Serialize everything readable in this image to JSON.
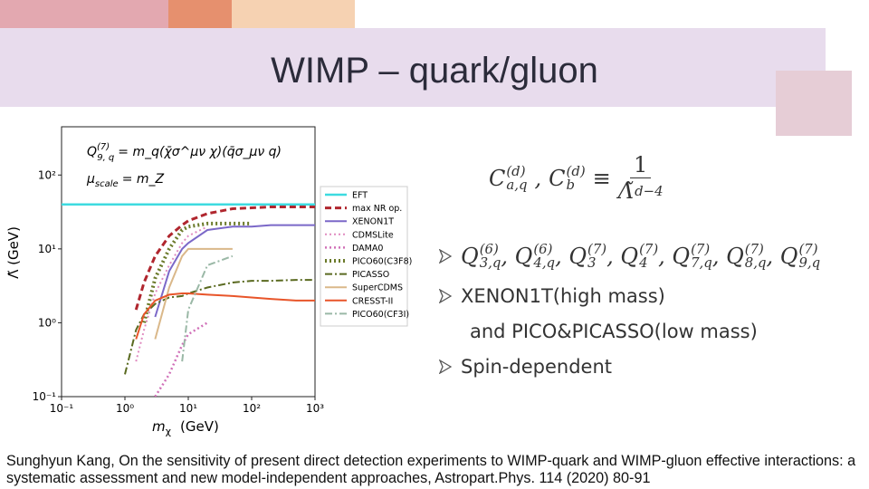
{
  "title": "WIMP – quark/gluon",
  "chart_data": {
    "type": "line",
    "x_label": {
      "base": "m",
      "sub": "χ",
      "unit": "(GeV)"
    },
    "y_label": "Λ̃  (GeV)",
    "log_x": true,
    "log_y": true,
    "xlim": [
      0.1,
      1000
    ],
    "ylim": [
      0.1,
      450
    ],
    "xticks": [
      {
        "value": 0.1,
        "label": "10⁻¹"
      },
      {
        "value": 1,
        "label": "10⁰"
      },
      {
        "value": 10,
        "label": "10¹"
      },
      {
        "value": 100,
        "label": "10²"
      },
      {
        "value": 1000,
        "label": "10³"
      }
    ],
    "yticks": [
      {
        "value": 0.1,
        "label": "10⁻¹"
      },
      {
        "value": 1,
        "label": "10⁰"
      },
      {
        "value": 10,
        "label": "10¹"
      },
      {
        "value": 100,
        "label": "10²"
      }
    ],
    "annotations": [
      {
        "base": "Q",
        "sup": "(7)",
        "sub": "9, q",
        "rhs": "= m_q(χ̄σ^μν χ)(q̄σ_μν q)"
      },
      {
        "base": "μ",
        "sub": "scale",
        "rhs": "= m_Z"
      }
    ],
    "legend": "right",
    "x": [
      0.1,
      1,
      1.5,
      2,
      3,
      5,
      8,
      10,
      20,
      50,
      100,
      200,
      500,
      1000
    ],
    "series": [
      {
        "name": "EFT",
        "color": "#3ddbe0",
        "style": "solid",
        "width": 2.5,
        "values": [
          40,
          40,
          40,
          40,
          40,
          40,
          40,
          40,
          40,
          40,
          40,
          40,
          40,
          40
        ]
      },
      {
        "name": "max NR op.",
        "color": "#b0262e",
        "style": "dashed",
        "width": 3,
        "values": [
          null,
          null,
          1.5,
          3.5,
          8,
          15,
          21,
          24,
          30,
          35,
          36,
          37,
          37,
          37
        ]
      },
      {
        "name": "XENON1T",
        "color": "#7b68c8",
        "style": "solid",
        "width": 2,
        "values": [
          null,
          null,
          null,
          null,
          1.2,
          5,
          10,
          12,
          18,
          20,
          20,
          21,
          21,
          21
        ]
      },
      {
        "name": "CDMSLite",
        "color": "#e08cc0",
        "style": "dotted",
        "width": 2,
        "values": [
          null,
          null,
          0.3,
          0.8,
          2.5,
          6,
          12,
          15,
          20,
          null,
          null,
          null,
          null,
          null
        ]
      },
      {
        "name": "DAMA0",
        "color": "#d070b8",
        "style": "dotted",
        "width": 2.5,
        "values": [
          null,
          null,
          null,
          null,
          0.1,
          0.2,
          0.5,
          0.7,
          1,
          null,
          null,
          null,
          null,
          null
        ]
      },
      {
        "name": "PICO60(C3F8)",
        "color": "#6b7a2a",
        "style": "dotted",
        "width": 4,
        "values": [
          null,
          null,
          null,
          1,
          4,
          10,
          18,
          20,
          22,
          22,
          22,
          null,
          null,
          null
        ]
      },
      {
        "name": "PICASSO",
        "color": "#5a6a20",
        "style": "dashdot",
        "width": 2,
        "values": [
          null,
          0.2,
          0.8,
          1.3,
          1.8,
          2.2,
          2.3,
          2.5,
          3,
          3.5,
          3.7,
          3.7,
          3.8,
          3.8
        ]
      },
      {
        "name": "SuperCDMS",
        "color": "#dab88a",
        "style": "solid",
        "width": 2,
        "values": [
          null,
          null,
          null,
          null,
          0.6,
          3,
          8,
          10,
          10,
          10,
          null,
          null,
          null,
          null
        ]
      },
      {
        "name": "CRESST-II",
        "color": "#e8552a",
        "style": "solid",
        "width": 2,
        "values": [
          null,
          null,
          0.6,
          1.3,
          2,
          2.4,
          2.5,
          2.5,
          2.4,
          2.3,
          2.2,
          2.1,
          2,
          2
        ]
      },
      {
        "name": "PICO60(CF3I)",
        "color": "#9ab8a6",
        "style": "dashdot",
        "width": 2,
        "values": [
          null,
          null,
          null,
          null,
          null,
          null,
          0.3,
          1.5,
          6,
          8,
          null,
          null,
          null,
          null
        ]
      }
    ]
  },
  "formula": {
    "lhs": [
      {
        "base": "C",
        "sup": "(d)",
        "sub": "a,q"
      },
      {
        "base": "C",
        "sup": "(d)",
        "sub": "b"
      }
    ],
    "equiv": "≡",
    "numerator": "1",
    "denominator": {
      "base": "Λ̃",
      "sup": "d−4"
    }
  },
  "bullets": [
    {
      "terms": [
        {
          "base": "Q",
          "sup": "(6)",
          "sub": "3,q"
        },
        {
          "base": "Q",
          "sup": "(6)",
          "sub": "4,q"
        },
        {
          "base": "Q",
          "sup": "(7)",
          "sub": "3"
        },
        {
          "base": "Q",
          "sup": "(7)",
          "sub": "4"
        },
        {
          "base": "Q",
          "sup": "(7)",
          "sub": "7,q"
        },
        {
          "base": "Q",
          "sup": "(7)",
          "sub": "8,q"
        },
        {
          "base": "Q",
          "sup": "(7)",
          "sub": "9,q"
        }
      ]
    },
    {
      "text": "XENON1T(high mass)"
    },
    {
      "text": "and PICO&PICASSO(low mass)",
      "continued": true
    },
    {
      "text": "Spin-dependent"
    }
  ],
  "citation": "Sunghyun Kang, On the sensitivity of present direct detection experiments to WIMP-quark and WIMP-gluon effective interactions: a systematic assessment and new model-independent approaches, Astropart.Phys. 114 (2020) 80-91"
}
